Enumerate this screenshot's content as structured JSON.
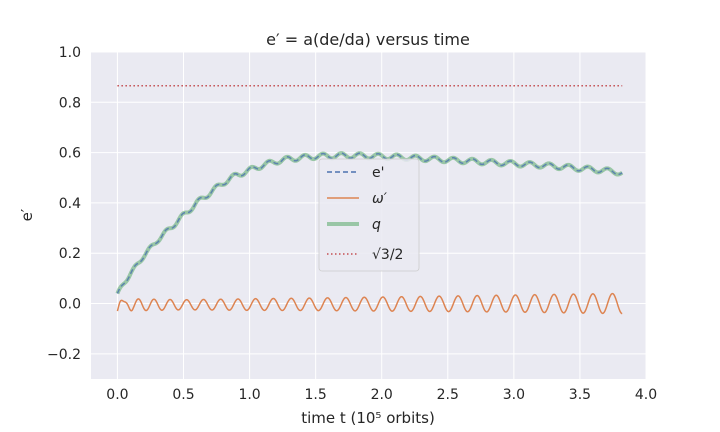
{
  "chart_data": {
    "type": "line",
    "title": "e′ = a(de/da) versus time",
    "xlabel": "time t    (10⁵ orbits)",
    "ylabel": "e′",
    "xlim": [
      -0.2,
      4.0
    ],
    "ylim": [
      -0.3,
      1.0
    ],
    "xticks": [
      "0.0",
      "0.5",
      "1.0",
      "1.5",
      "2.0",
      "2.5",
      "3.0",
      "3.5",
      "4.0"
    ],
    "yticks": [
      "−0.2",
      "0.0",
      "0.2",
      "0.4",
      "0.6",
      "0.8",
      "1.0"
    ],
    "grid": true,
    "legend_position": "center",
    "colors": {
      "e_prime": "#4c72b0",
      "omega_prime": "#dd8452",
      "q": "#55a868",
      "sqrt3_over_2": "#c44e52",
      "background": "#eaeaf2"
    },
    "series": [
      {
        "name": "e'",
        "style": "dashed",
        "x": [
          0.0,
          0.1,
          0.2,
          0.3,
          0.4,
          0.5,
          0.6,
          0.7,
          0.8,
          0.9,
          1.0,
          1.1,
          1.2,
          1.3,
          1.4,
          1.5,
          1.6,
          1.7,
          1.8,
          1.9,
          2.0,
          2.1,
          2.2,
          2.3,
          2.4,
          2.5,
          2.6,
          2.7,
          2.8,
          2.9,
          3.0,
          3.1,
          3.2,
          3.3,
          3.4,
          3.5,
          3.6,
          3.7,
          3.8,
          3.82
        ],
        "y": [
          0.04,
          0.12,
          0.19,
          0.25,
          0.3,
          0.35,
          0.4,
          0.44,
          0.48,
          0.51,
          0.53,
          0.55,
          0.565,
          0.575,
          0.58,
          0.585,
          0.587,
          0.588,
          0.588,
          0.587,
          0.585,
          0.583,
          0.58,
          0.577,
          0.574,
          0.571,
          0.568,
          0.565,
          0.562,
          0.559,
          0.556,
          0.553,
          0.55,
          0.546,
          0.542,
          0.537,
          0.533,
          0.528,
          0.522,
          0.52
        ]
      },
      {
        "name": "ω′",
        "style": "solid",
        "x": [
          0.0,
          0.5,
          1.0,
          1.5,
          2.0,
          2.5,
          3.0,
          3.5,
          3.82
        ],
        "y_center": [
          -0.005,
          -0.005,
          -0.004,
          -0.003,
          -0.002,
          -0.001,
          0.0,
          0.0,
          0.0
        ],
        "y_amplitude": [
          0.025,
          0.02,
          0.023,
          0.025,
          0.028,
          0.031,
          0.034,
          0.038,
          0.04
        ],
        "oscillations": 28
      },
      {
        "name": "q",
        "style": "solid-thick",
        "x": [
          0.0,
          0.1,
          0.2,
          0.3,
          0.4,
          0.5,
          0.6,
          0.7,
          0.8,
          0.9,
          1.0,
          1.1,
          1.2,
          1.3,
          1.4,
          1.5,
          1.6,
          1.7,
          1.8,
          1.9,
          2.0,
          2.1,
          2.2,
          2.3,
          2.4,
          2.5,
          2.6,
          2.7,
          2.8,
          2.9,
          3.0,
          3.1,
          3.2,
          3.3,
          3.4,
          3.5,
          3.6,
          3.7,
          3.8,
          3.82
        ],
        "y": [
          0.04,
          0.12,
          0.19,
          0.25,
          0.3,
          0.35,
          0.4,
          0.44,
          0.48,
          0.51,
          0.53,
          0.55,
          0.565,
          0.575,
          0.58,
          0.585,
          0.587,
          0.588,
          0.588,
          0.587,
          0.585,
          0.583,
          0.58,
          0.577,
          0.574,
          0.571,
          0.568,
          0.565,
          0.562,
          0.559,
          0.556,
          0.553,
          0.55,
          0.546,
          0.542,
          0.537,
          0.533,
          0.528,
          0.522,
          0.52
        ]
      },
      {
        "name": "√3/2",
        "style": "dotted",
        "x": [
          0.0,
          3.82
        ],
        "y": [
          0.866,
          0.866
        ]
      }
    ],
    "legend": {
      "items": [
        "e'",
        "ω′",
        "q",
        "√3/2"
      ]
    }
  }
}
